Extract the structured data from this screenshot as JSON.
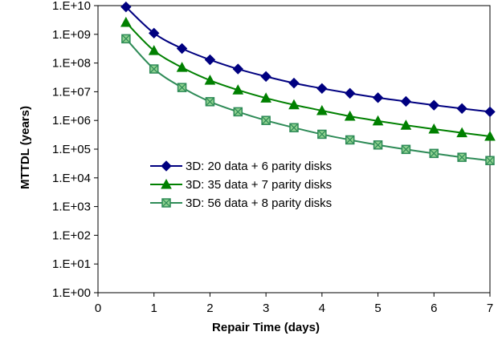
{
  "chart_data": {
    "type": "line",
    "title": "",
    "xlabel": "Repair Time (days)",
    "ylabel": "MTTDL (years)",
    "xlim": [
      0,
      7
    ],
    "ylim_log10": [
      0,
      10
    ],
    "y_scale": "log",
    "grid": false,
    "legend_position": "center",
    "x_ticks": [
      "0",
      "1",
      "2",
      "3",
      "4",
      "5",
      "6",
      "7"
    ],
    "y_ticks": [
      "1.E+00",
      "1.E+01",
      "1.E+02",
      "1.E+03",
      "1.E+04",
      "1.E+05",
      "1.E+06",
      "1.E+07",
      "1.E+08",
      "1.E+09",
      "1.E+10"
    ],
    "x": [
      0.5,
      1.0,
      1.5,
      2.0,
      2.5,
      3.0,
      3.5,
      4.0,
      4.5,
      5.0,
      5.5,
      6.0,
      6.5,
      7.0
    ],
    "series": [
      {
        "name": "3D: 20 data + 6 parity disks",
        "color": "#000080",
        "marker": "diamond",
        "values": [
          9000000000.0,
          1100000000.0,
          320000000.0,
          130000000.0,
          62000000.0,
          34000000.0,
          20000000.0,
          13000000.0,
          8800000.0,
          6200000.0,
          4600000.0,
          3400000.0,
          2600000.0,
          2000000.0
        ]
      },
      {
        "name": "3D: 35 data + 7 parity disks",
        "color": "#008000",
        "marker": "triangle",
        "values": [
          2600000000.0,
          270000000.0,
          70000000.0,
          25000000.0,
          11500000.0,
          6000000.0,
          3500000.0,
          2200000.0,
          1400000.0,
          960000.0,
          680000.0,
          500000.0,
          370000.0,
          280000.0
        ]
      },
      {
        "name": "3D: 56 data + 8 parity disks",
        "color": "#2e8b57",
        "marker": "square-x",
        "values": [
          700000000.0,
          62000000.0,
          14000000.0,
          4500000.0,
          2000000.0,
          1000000.0,
          560000.0,
          330000.0,
          210000.0,
          140000.0,
          98000.0,
          71000.0,
          52000.0,
          40000.0
        ]
      }
    ]
  }
}
